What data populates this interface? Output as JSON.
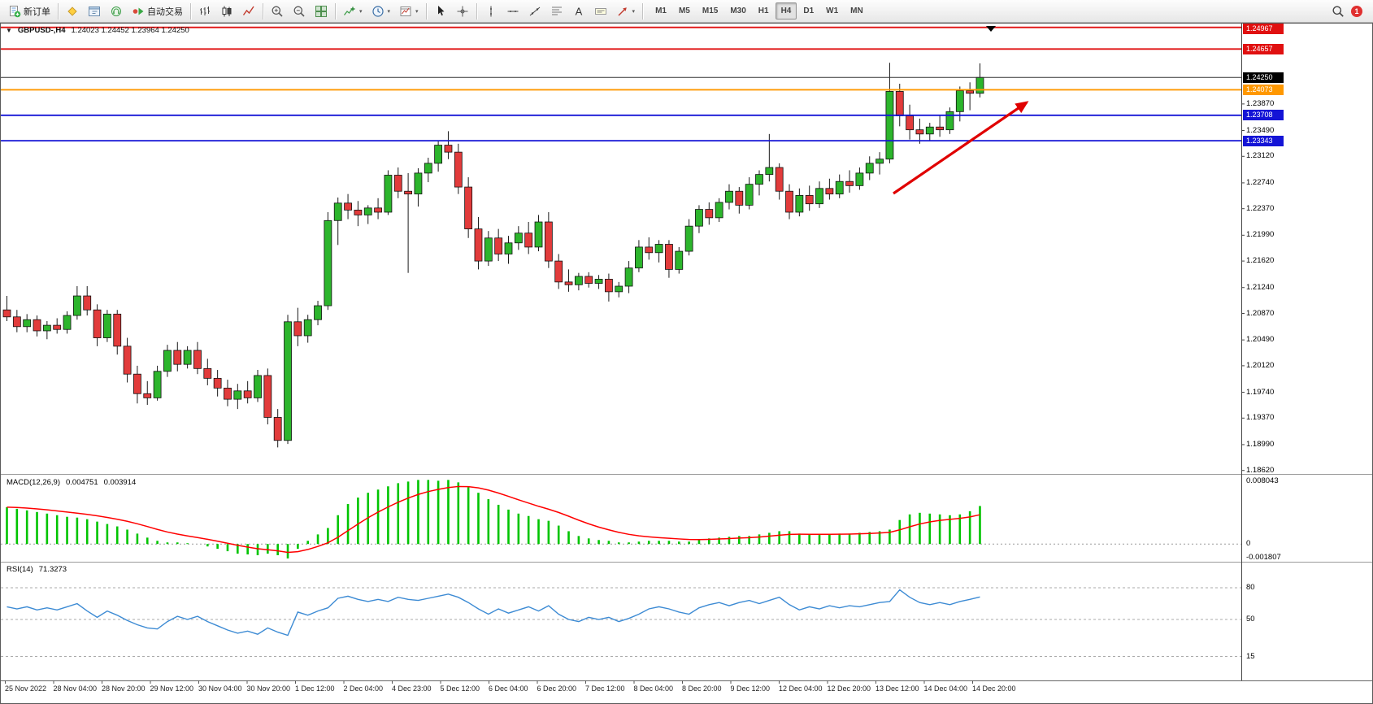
{
  "toolbar": {
    "new_order": "新订单",
    "auto_trading": "自动交易",
    "timeframes": [
      "M1",
      "M5",
      "M15",
      "M30",
      "H1",
      "H4",
      "D1",
      "W1",
      "MN"
    ],
    "active_timeframe": "H4",
    "notification_count": "1"
  },
  "chart": {
    "symbol_period": "GBPUSD-,H4",
    "ohlc": "1.24023 1.24452 1.23964 1.24250",
    "current_price": "1.24250",
    "price_ticks": [
      "1.23870",
      "1.23490",
      "1.23120",
      "1.22740",
      "1.22370",
      "1.21990",
      "1.21620",
      "1.21240",
      "1.20870",
      "1.20490",
      "1.20120",
      "1.19740",
      "1.19370",
      "1.18990",
      "1.18620"
    ],
    "levels": [
      {
        "label": "1.24967",
        "value": 1.24967,
        "color": "#e01010"
      },
      {
        "label": "1.24657",
        "value": 1.24657,
        "color": "#e01010"
      },
      {
        "label": "1.24073",
        "value": 1.24073,
        "color": "#ff9800"
      },
      {
        "label": "1.23708",
        "value": 1.23708,
        "color": "#1414d6"
      },
      {
        "label": "1.23343",
        "value": 1.23343,
        "color": "#1414d6"
      }
    ],
    "colors": {
      "up": "#2cb52c",
      "down": "#e23b3b",
      "wick": "#1a1a1a",
      "macd_bar": "#00c400",
      "macd_signal": "#ff0000",
      "rsi": "#3d8bd4",
      "arrow": "#e00000"
    }
  },
  "macd_panel": {
    "label": "MACD(12,26,9)",
    "main_value": "0.004751",
    "signal_value": "0.003914",
    "axis": [
      "0.008043",
      "0",
      "-0.001807"
    ]
  },
  "rsi_panel": {
    "label": "RSI(14)",
    "value": "71.3273",
    "levels_labels": [
      "80",
      "50",
      "15"
    ]
  },
  "chart_data": {
    "type": "candlestick",
    "symbol": "GBPUSD",
    "period": "H4",
    "price_range": [
      1.1857,
      1.2501
    ],
    "candles_ohlc": [
      [
        1.2092,
        1.2112,
        1.2076,
        1.2082
      ],
      [
        1.2082,
        1.2092,
        1.206,
        1.2068
      ],
      [
        1.2068,
        1.2086,
        1.206,
        1.2078
      ],
      [
        1.2078,
        1.2084,
        1.2054,
        1.2062
      ],
      [
        1.2062,
        1.2076,
        1.205,
        1.207
      ],
      [
        1.207,
        1.208,
        1.2058,
        1.2064
      ],
      [
        1.2064,
        1.209,
        1.2058,
        1.2084
      ],
      [
        1.2084,
        1.2126,
        1.2078,
        1.2112
      ],
      [
        1.2112,
        1.2126,
        1.2084,
        1.2092
      ],
      [
        1.2092,
        1.21,
        1.204,
        1.2052
      ],
      [
        1.2052,
        1.2092,
        1.2046,
        1.2086
      ],
      [
        1.2086,
        1.2092,
        1.2028,
        1.204
      ],
      [
        1.204,
        1.2052,
        1.1988,
        1.2
      ],
      [
        1.2,
        1.2012,
        1.1958,
        1.1972
      ],
      [
        1.1972,
        1.199,
        1.1956,
        1.1966
      ],
      [
        1.1966,
        1.2012,
        1.1962,
        1.2004
      ],
      [
        1.2004,
        1.2042,
        1.1996,
        1.2034
      ],
      [
        1.2034,
        1.2046,
        1.2004,
        1.2014
      ],
      [
        1.2014,
        1.204,
        1.2008,
        1.2034
      ],
      [
        1.2034,
        1.2046,
        1.2,
        1.2008
      ],
      [
        1.2008,
        1.2022,
        1.1984,
        1.1994
      ],
      [
        1.1994,
        1.2006,
        1.1968,
        1.198
      ],
      [
        1.198,
        1.1992,
        1.1954,
        1.1964
      ],
      [
        1.1964,
        1.1986,
        1.195,
        1.1976
      ],
      [
        1.1976,
        1.199,
        1.1958,
        1.1966
      ],
      [
        1.1966,
        1.2006,
        1.196,
        1.1998
      ],
      [
        1.1998,
        1.2008,
        1.1928,
        1.1938
      ],
      [
        1.1938,
        1.195,
        1.1895,
        1.1905
      ],
      [
        1.1905,
        1.2085,
        1.19,
        1.2075
      ],
      [
        1.2075,
        1.2095,
        1.204,
        1.2055
      ],
      [
        1.2055,
        1.2085,
        1.2045,
        1.2078
      ],
      [
        1.2078,
        1.2105,
        1.207,
        1.2098
      ],
      [
        1.2098,
        1.2232,
        1.2092,
        1.222
      ],
      [
        1.222,
        1.2253,
        1.2185,
        1.2245
      ],
      [
        1.2245,
        1.2258,
        1.2222,
        1.2235
      ],
      [
        1.2235,
        1.2248,
        1.2212,
        1.2228
      ],
      [
        1.2228,
        1.2242,
        1.2215,
        1.2238
      ],
      [
        1.2238,
        1.2252,
        1.2222,
        1.2232
      ],
      [
        1.2232,
        1.2292,
        1.2228,
        1.2285
      ],
      [
        1.2285,
        1.2296,
        1.2252,
        1.2262
      ],
      [
        1.2262,
        1.2288,
        1.2145,
        1.2258
      ],
      [
        1.2258,
        1.2295,
        1.224,
        1.2288
      ],
      [
        1.2288,
        1.231,
        1.2275,
        1.2302
      ],
      [
        1.2302,
        1.2335,
        1.229,
        1.2328
      ],
      [
        1.2328,
        1.2348,
        1.2308,
        1.2318
      ],
      [
        1.2318,
        1.233,
        1.2258,
        1.2268
      ],
      [
        1.2268,
        1.2282,
        1.2195,
        1.2208
      ],
      [
        1.2208,
        1.2225,
        1.215,
        1.2162
      ],
      [
        1.2162,
        1.2205,
        1.2155,
        1.2195
      ],
      [
        1.2195,
        1.2208,
        1.2162,
        1.2172
      ],
      [
        1.2172,
        1.2198,
        1.2158,
        1.2188
      ],
      [
        1.2188,
        1.2212,
        1.2178,
        1.2202
      ],
      [
        1.2202,
        1.2218,
        1.2172,
        1.2182
      ],
      [
        1.2182,
        1.2228,
        1.2176,
        1.2218
      ],
      [
        1.2218,
        1.2232,
        1.2152,
        1.2162
      ],
      [
        1.2162,
        1.2172,
        1.2122,
        1.2132
      ],
      [
        1.2132,
        1.215,
        1.2118,
        1.2128
      ],
      [
        1.2128,
        1.2145,
        1.212,
        1.214
      ],
      [
        1.214,
        1.2146,
        1.2124,
        1.213
      ],
      [
        1.213,
        1.2142,
        1.2122,
        1.2136
      ],
      [
        1.2136,
        1.2144,
        1.2104,
        1.2118
      ],
      [
        1.2118,
        1.2132,
        1.211,
        1.2126
      ],
      [
        1.2126,
        1.2162,
        1.2116,
        1.2152
      ],
      [
        1.2152,
        1.2192,
        1.2146,
        1.2182
      ],
      [
        1.2182,
        1.2196,
        1.2164,
        1.2174
      ],
      [
        1.2174,
        1.2192,
        1.216,
        1.2186
      ],
      [
        1.2186,
        1.2192,
        1.2138,
        1.215
      ],
      [
        1.215,
        1.2182,
        1.2144,
        1.2176
      ],
      [
        1.2176,
        1.2222,
        1.217,
        1.2212
      ],
      [
        1.2212,
        1.2242,
        1.2202,
        1.2236
      ],
      [
        1.2236,
        1.2246,
        1.2214,
        1.2224
      ],
      [
        1.2224,
        1.2252,
        1.2218,
        1.2246
      ],
      [
        1.2246,
        1.2272,
        1.2236,
        1.2262
      ],
      [
        1.2262,
        1.2268,
        1.223,
        1.2242
      ],
      [
        1.2242,
        1.2282,
        1.2236,
        1.2272
      ],
      [
        1.2272,
        1.2292,
        1.2256,
        1.2286
      ],
      [
        1.2286,
        1.2344,
        1.2276,
        1.2296
      ],
      [
        1.2296,
        1.2302,
        1.225,
        1.2262
      ],
      [
        1.2262,
        1.2272,
        1.2222,
        1.2232
      ],
      [
        1.2232,
        1.2266,
        1.2226,
        1.2256
      ],
      [
        1.2256,
        1.227,
        1.2234,
        1.2244
      ],
      [
        1.2244,
        1.2276,
        1.2238,
        1.2266
      ],
      [
        1.2266,
        1.228,
        1.225,
        1.2258
      ],
      [
        1.2258,
        1.2286,
        1.2252,
        1.2276
      ],
      [
        1.2276,
        1.2292,
        1.226,
        1.227
      ],
      [
        1.227,
        1.2296,
        1.2264,
        1.2288
      ],
      [
        1.2288,
        1.2312,
        1.2278,
        1.2302
      ],
      [
        1.2302,
        1.2318,
        1.2286,
        1.2308
      ],
      [
        1.2308,
        1.2446,
        1.2302,
        1.2405
      ],
      [
        1.2405,
        1.2416,
        1.2355,
        1.237
      ],
      [
        1.237,
        1.2386,
        1.2336,
        1.235
      ],
      [
        1.235,
        1.2366,
        1.233,
        1.2344
      ],
      [
        1.2344,
        1.236,
        1.2334,
        1.2354
      ],
      [
        1.2354,
        1.237,
        1.234,
        1.235
      ],
      [
        1.235,
        1.2382,
        1.2344,
        1.2376
      ],
      [
        1.2376,
        1.2412,
        1.2362,
        1.2406
      ],
      [
        1.2406,
        1.2418,
        1.2378,
        1.24023
      ],
      [
        1.24023,
        1.24452,
        1.23964,
        1.2425
      ]
    ],
    "macd": {
      "params": [
        12,
        26,
        9
      ],
      "scale": [
        -0.001807,
        0.008043
      ],
      "main": [
        0.0046,
        0.0044,
        0.0042,
        0.004,
        0.0038,
        0.0036,
        0.0034,
        0.0033,
        0.0031,
        0.0028,
        0.0025,
        0.0022,
        0.0018,
        0.0013,
        0.0008,
        0.0004,
        0.0002,
        0.0002,
        0.0001,
        0.0,
        -0.0003,
        -0.0006,
        -0.0009,
        -0.0012,
        -0.0013,
        -0.0014,
        -0.0012,
        -0.0014,
        -0.0018,
        -0.0006,
        0.0004,
        0.0012,
        0.002,
        0.0036,
        0.005,
        0.0058,
        0.0064,
        0.0068,
        0.0072,
        0.0076,
        0.0078,
        0.008,
        0.008,
        0.0079,
        0.008,
        0.0077,
        0.0071,
        0.0064,
        0.0056,
        0.0049,
        0.0043,
        0.0038,
        0.0035,
        0.0031,
        0.0029,
        0.0023,
        0.0016,
        0.001,
        0.0007,
        0.0005,
        0.0004,
        0.0002,
        0.0002,
        0.0003,
        0.0004,
        0.0004,
        0.0004,
        0.0003,
        0.0003,
        0.0005,
        0.0007,
        0.0008,
        0.0009,
        0.001,
        0.001,
        0.0012,
        0.0014,
        0.0016,
        0.0016,
        0.0013,
        0.0012,
        0.0012,
        0.0012,
        0.0013,
        0.0013,
        0.0014,
        0.0015,
        0.0016,
        0.0018,
        0.003,
        0.0037,
        0.0039,
        0.0038,
        0.0037,
        0.0036,
        0.0037,
        0.0041,
        0.004751
      ]
    },
    "rsi": {
      "period": 14,
      "levels": [
        80,
        50,
        15
      ],
      "last": 71.3273,
      "values": [
        62,
        60,
        62,
        59,
        61,
        59,
        62,
        65,
        58,
        52,
        58,
        54,
        49,
        45,
        42,
        41,
        48,
        53,
        50,
        53,
        48,
        44,
        40,
        37,
        39,
        36,
        42,
        38,
        35,
        57,
        54,
        58,
        61,
        70,
        72,
        69,
        67,
        69,
        67,
        71,
        69,
        68,
        70,
        72,
        74,
        71,
        66,
        60,
        55,
        60,
        56,
        59,
        62,
        58,
        63,
        55,
        50,
        48,
        52,
        50,
        52,
        48,
        51,
        55,
        60,
        62,
        60,
        57,
        55,
        61,
        64,
        66,
        63,
        66,
        68,
        65,
        68,
        71,
        64,
        59,
        62,
        60,
        63,
        61,
        63,
        62,
        64,
        66,
        67,
        78,
        71,
        66,
        64,
        66,
        64,
        67,
        69,
        71.3273
      ]
    },
    "time_labels": [
      "25 Nov 2022",
      "28 Nov 04:00",
      "28 Nov 20:00",
      "29 Nov 12:00",
      "30 Nov 04:00",
      "30 Nov 20:00",
      "1 Dec 12:00",
      "2 Dec 04:00",
      "4 Dec 23:00",
      "5 Dec 12:00",
      "6 Dec 04:00",
      "6 Dec 20:00",
      "7 Dec 12:00",
      "8 Dec 04:00",
      "8 Dec 20:00",
      "9 Dec 12:00",
      "12 Dec 04:00",
      "12 Dec 20:00",
      "13 Dec 12:00",
      "14 Dec 04:00",
      "14 Dec 20:00"
    ]
  }
}
